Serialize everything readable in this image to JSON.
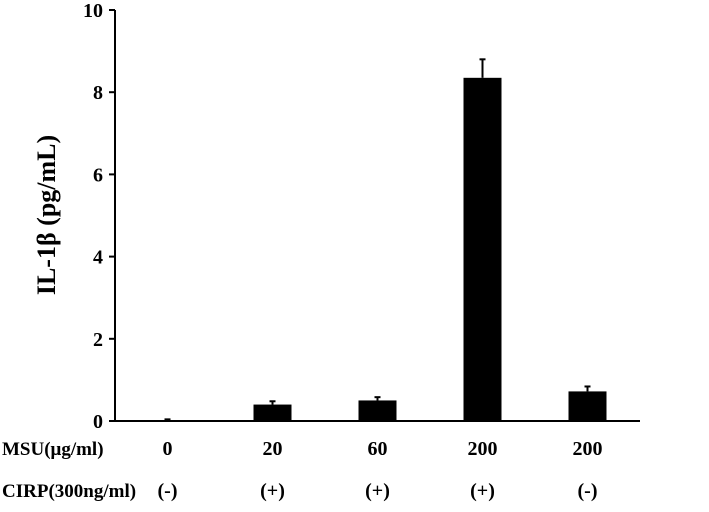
{
  "chart_data": {
    "type": "bar",
    "ylabel": "IL-1β (pg/mL)",
    "ylim": [
      0,
      10
    ],
    "yticks": [
      0,
      2,
      4,
      6,
      8,
      10
    ],
    "grid": false,
    "legend": "none",
    "categories": [
      "0/(-)",
      "20/(+)",
      "60/(+)",
      "200/(+)",
      "200/(-)"
    ],
    "values": [
      0.02,
      0.4,
      0.5,
      8.35,
      0.72
    ],
    "errors": [
      0.02,
      0.08,
      0.08,
      0.45,
      0.12
    ],
    "bar_color": "#000000",
    "condition_rows": [
      {
        "label": "MSU(μg/ml)",
        "values": [
          "0",
          "20",
          "60",
          "200",
          "200"
        ]
      },
      {
        "label": "CIRP(300ng/ml)",
        "values": [
          "(-)",
          "(+)",
          "(+)",
          "(+)",
          "(-)"
        ]
      }
    ]
  }
}
